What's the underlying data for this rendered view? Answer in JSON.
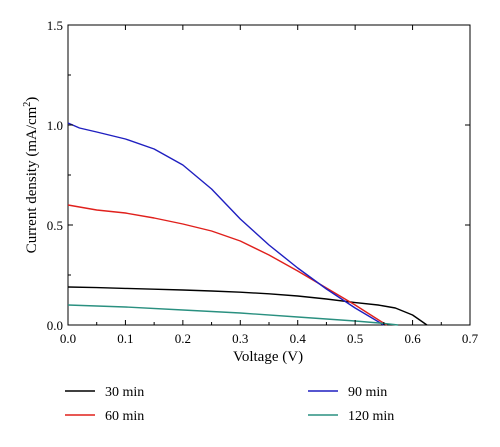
{
  "chart_data": {
    "type": "line",
    "title": "",
    "xlabel": "Voltage (V)",
    "ylabel_main": "Current density (mA/cm",
    "ylabel_sup": "2",
    "ylabel_close": ")",
    "xlim": [
      0.0,
      0.7
    ],
    "ylim": [
      0.0,
      1.5
    ],
    "xticks": [
      0.0,
      0.1,
      0.2,
      0.3,
      0.4,
      0.5,
      0.6,
      0.7
    ],
    "xtick_labels": [
      "0.0",
      "0.1",
      "0.2",
      "0.3",
      "0.4",
      "0.5",
      "0.6",
      "0.7"
    ],
    "yticks": [
      0.0,
      0.5,
      1.0,
      1.5
    ],
    "ytick_labels": [
      "0.0",
      "0.5",
      "1.0",
      "1.5"
    ],
    "grid": false,
    "legend_position": "bottom, below plot",
    "series": [
      {
        "name": "30 min",
        "color": "#000000",
        "points": [
          [
            0.0,
            0.19
          ],
          [
            0.05,
            0.187
          ],
          [
            0.1,
            0.183
          ],
          [
            0.15,
            0.179
          ],
          [
            0.2,
            0.175
          ],
          [
            0.25,
            0.17
          ],
          [
            0.3,
            0.164
          ],
          [
            0.35,
            0.156
          ],
          [
            0.4,
            0.145
          ],
          [
            0.45,
            0.13
          ],
          [
            0.5,
            0.112
          ],
          [
            0.54,
            0.1
          ],
          [
            0.57,
            0.085
          ],
          [
            0.6,
            0.05
          ],
          [
            0.615,
            0.02
          ],
          [
            0.625,
            0.0
          ]
        ]
      },
      {
        "name": "60 min",
        "color": "#e0201c",
        "points": [
          [
            0.0,
            0.6
          ],
          [
            0.05,
            0.575
          ],
          [
            0.1,
            0.56
          ],
          [
            0.15,
            0.535
          ],
          [
            0.2,
            0.505
          ],
          [
            0.25,
            0.47
          ],
          [
            0.3,
            0.42
          ],
          [
            0.35,
            0.35
          ],
          [
            0.4,
            0.27
          ],
          [
            0.45,
            0.185
          ],
          [
            0.5,
            0.1
          ],
          [
            0.53,
            0.045
          ],
          [
            0.555,
            0.0
          ]
        ]
      },
      {
        "name": "90 min",
        "color": "#1f1fc0",
        "points": [
          [
            0.0,
            1.01
          ],
          [
            0.02,
            0.985
          ],
          [
            0.05,
            0.965
          ],
          [
            0.1,
            0.93
          ],
          [
            0.15,
            0.88
          ],
          [
            0.2,
            0.8
          ],
          [
            0.25,
            0.68
          ],
          [
            0.3,
            0.53
          ],
          [
            0.35,
            0.4
          ],
          [
            0.4,
            0.285
          ],
          [
            0.45,
            0.18
          ],
          [
            0.5,
            0.085
          ],
          [
            0.55,
            0.0
          ]
        ]
      },
      {
        "name": "120 min",
        "color": "#2a9080",
        "points": [
          [
            0.0,
            0.1
          ],
          [
            0.1,
            0.09
          ],
          [
            0.2,
            0.075
          ],
          [
            0.3,
            0.06
          ],
          [
            0.4,
            0.04
          ],
          [
            0.5,
            0.02
          ],
          [
            0.55,
            0.008
          ],
          [
            0.575,
            0.0
          ]
        ]
      }
    ]
  }
}
